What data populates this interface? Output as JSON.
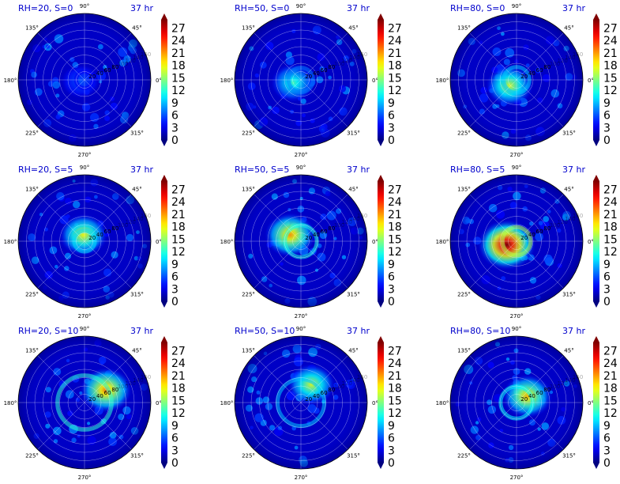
{
  "chart_data": {
    "type": "heatmap",
    "subtype": "polar",
    "layout": {
      "rows": 3,
      "cols": 3
    },
    "angle_labels": [
      "0°",
      "45°",
      "90°",
      "135°",
      "180°",
      "225°",
      "270°",
      "315°"
    ],
    "radial_labels": [
      "20",
      "40",
      "60",
      "80",
      "100",
      "120",
      "140",
      "160"
    ],
    "grid": true,
    "colormap": "jet",
    "colorbar": {
      "ticks": [
        0,
        3,
        6,
        9,
        12,
        15,
        18,
        21,
        24,
        27
      ],
      "min": 0,
      "max": 29,
      "extend": "both"
    },
    "panels": [
      {
        "title": "RH=20, S=0",
        "time": "37 hr",
        "rh": 20,
        "s": 0,
        "peak": 6,
        "peak_angle_deg": 200,
        "peak_r": 10
      },
      {
        "title": "RH=50, S=0",
        "time": "37 hr",
        "rh": 50,
        "s": 0,
        "peak": 13,
        "peak_angle_deg": 200,
        "peak_r": 20
      },
      {
        "title": "RH=80, S=0",
        "time": "37 hr",
        "rh": 80,
        "s": 0,
        "peak": 17,
        "peak_angle_deg": 220,
        "peak_r": 22
      },
      {
        "title": "RH=20, S=5",
        "time": "37 hr",
        "rh": 20,
        "s": 5,
        "peak": 18,
        "peak_angle_deg": 100,
        "peak_r": 15
      },
      {
        "title": "RH=50, S=5",
        "time": "37 hr",
        "rh": 50,
        "s": 5,
        "peak": 21,
        "peak_angle_deg": 150,
        "peak_r": 30
      },
      {
        "title": "RH=80, S=5",
        "time": "37 hr",
        "rh": 80,
        "s": 5,
        "peak": 29,
        "peak_angle_deg": 200,
        "peak_r": 25
      },
      {
        "title": "RH=20, S=10",
        "time": "37 hr",
        "rh": 20,
        "s": 10,
        "peak": 22,
        "peak_angle_deg": 30,
        "peak_r": 60
      },
      {
        "title": "RH=50, S=10",
        "time": "37 hr",
        "rh": 50,
        "s": 10,
        "peak": 17,
        "peak_angle_deg": 60,
        "peak_r": 50
      },
      {
        "title": "RH=80, S=10",
        "time": "37 hr",
        "rh": 80,
        "s": 10,
        "peak": 20,
        "peak_angle_deg": 30,
        "peak_r": 30
      }
    ]
  }
}
